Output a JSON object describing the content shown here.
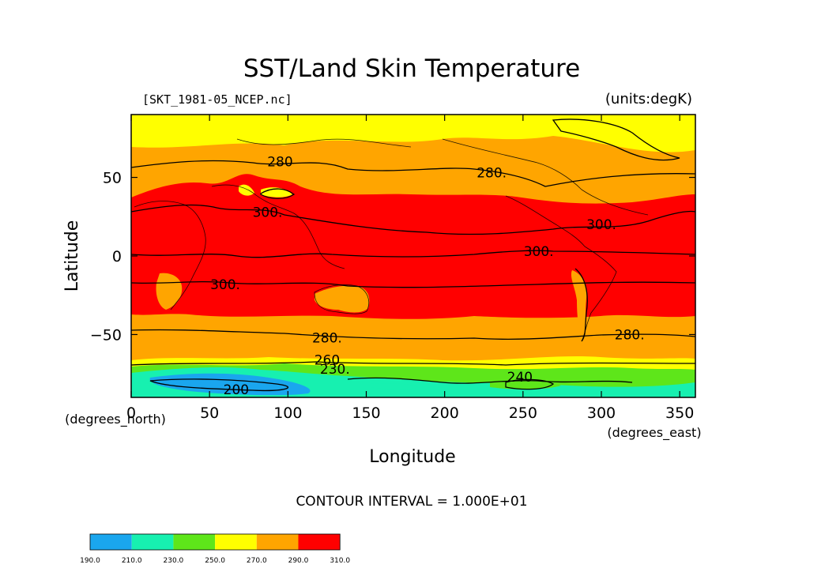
{
  "title": "SST/Land Skin Temperature",
  "file_label": "[SKT_1981-05_NCEP.nc]",
  "units_label": "(units:degK)",
  "x_axis": {
    "label": "Longitude",
    "units": "(degrees_east)",
    "ticks": [
      "0",
      "50",
      "100",
      "150",
      "200",
      "250",
      "300",
      "350"
    ],
    "tick_values": [
      0,
      50,
      100,
      150,
      200,
      250,
      300,
      350
    ],
    "range": [
      0,
      360
    ]
  },
  "y_axis": {
    "label": "Latitude",
    "units": "(degrees_north)",
    "ticks": [
      "50",
      "0",
      "−50"
    ],
    "tick_values": [
      50,
      0,
      -50
    ],
    "range": [
      -90,
      90
    ]
  },
  "contour_interval": "CONTOUR INTERVAL = 1.000E+01",
  "contour_labels": [
    {
      "text": "280",
      "lon": 95,
      "lat": 60
    },
    {
      "text": "280.",
      "lon": 230,
      "lat": 53
    },
    {
      "text": "300.",
      "lon": 87,
      "lat": 28
    },
    {
      "text": "300.",
      "lon": 300,
      "lat": 20
    },
    {
      "text": "300.",
      "lon": 260,
      "lat": 3
    },
    {
      "text": "300.",
      "lon": 60,
      "lat": -18
    },
    {
      "text": "280.",
      "lon": 125,
      "lat": -52
    },
    {
      "text": "280.",
      "lon": 318,
      "lat": -50
    },
    {
      "text": "260",
      "lon": 125,
      "lat": -66
    },
    {
      "text": "230.",
      "lon": 130,
      "lat": -72
    },
    {
      "text": "240",
      "lon": 248,
      "lat": -77
    },
    {
      "text": "200",
      "lon": 67,
      "lat": -85
    }
  ],
  "colorbar": {
    "ticks": [
      "190.0",
      "210.0",
      "230.0",
      "250.0",
      "270.0",
      "290.0",
      "310.0"
    ],
    "colors": [
      "#1aa6ee",
      "#17f0b0",
      "#5ee61a",
      "#ffff00",
      "#ffa500",
      "#ff0000"
    ]
  },
  "band_colors": {
    "190-210": "#1aa6ee",
    "210-230": "#17f0b0",
    "230-250": "#5ee61a",
    "250-270": "#ffff00",
    "270-290": "#ffa500",
    "290-310": "#ff0000"
  }
}
